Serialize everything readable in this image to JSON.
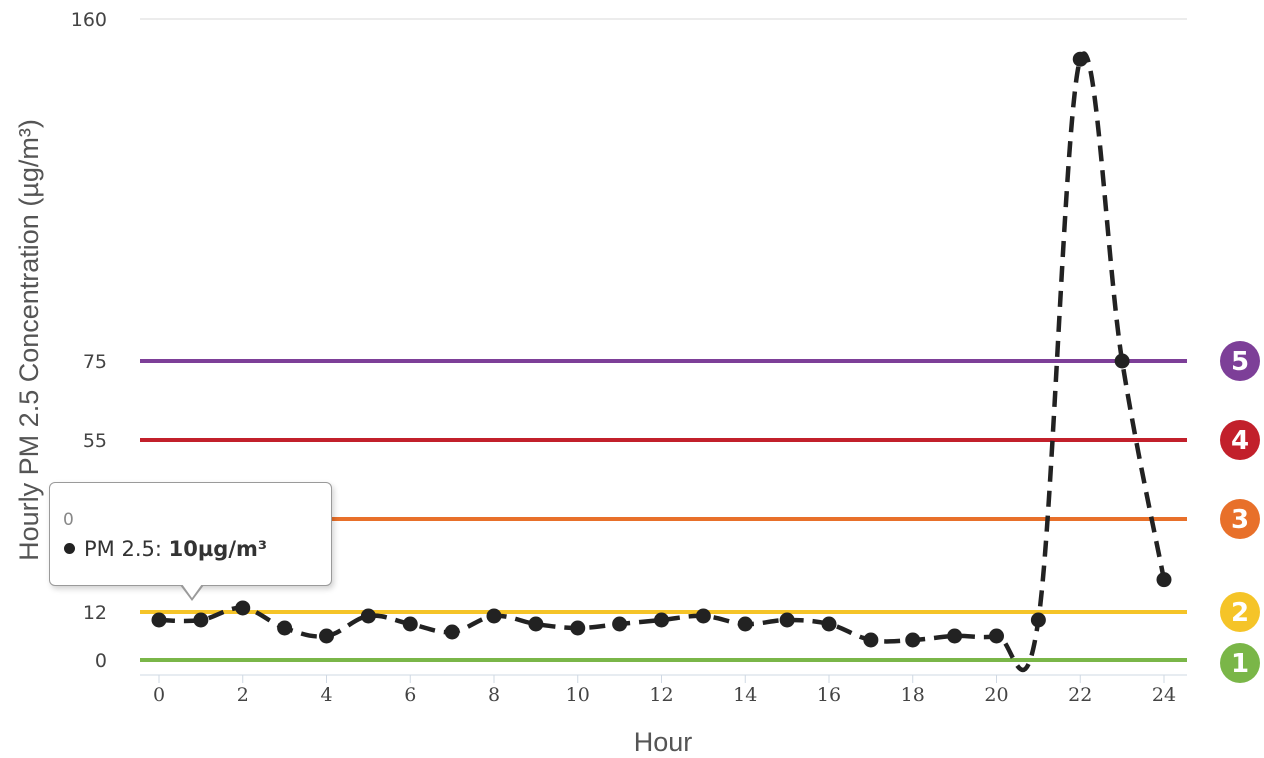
{
  "chart_data": {
    "type": "line",
    "title": "",
    "xlabel": "Hour",
    "ylabel": "Hourly PM 2.5 Concentration (µg/m³)",
    "xlim": [
      0,
      24
    ],
    "ylim": [
      0,
      160
    ],
    "x_ticks": [
      0,
      2,
      4,
      6,
      8,
      10,
      12,
      14,
      16,
      18,
      20,
      22,
      24
    ],
    "y_ticks": [
      0,
      12,
      35,
      55,
      75,
      160
    ],
    "grid": true,
    "series": [
      {
        "values": [
          10,
          10,
          13,
          8,
          6,
          11,
          9,
          7,
          11,
          9,
          8,
          9,
          10,
          11,
          9,
          10,
          9,
          5,
          5,
          6,
          6,
          10,
          150,
          75,
          20
        ],
        "x": [
          0,
          1,
          2,
          3,
          4,
          5,
          6,
          7,
          8,
          9,
          10,
          11,
          12,
          13,
          14,
          15,
          16,
          17,
          18,
          19,
          20,
          21,
          22,
          23,
          24
        ],
        "color": "#222222",
        "style": "dashed"
      }
    ],
    "thresholds": [
      {
        "value": 0,
        "color": "#7ab648",
        "badge": "1"
      },
      {
        "value": 12,
        "color": "#f5c428",
        "badge": "2"
      },
      {
        "value": 35,
        "color": "#e8702a",
        "badge": "3"
      },
      {
        "value": 55,
        "color": "#c2202b",
        "badge": "4"
      },
      {
        "value": 75,
        "color": "#7d3f98",
        "badge": "5"
      }
    ]
  },
  "tooltip": {
    "header": "0",
    "series_label": "PM 2.5: ",
    "value": "10µg/m³"
  }
}
